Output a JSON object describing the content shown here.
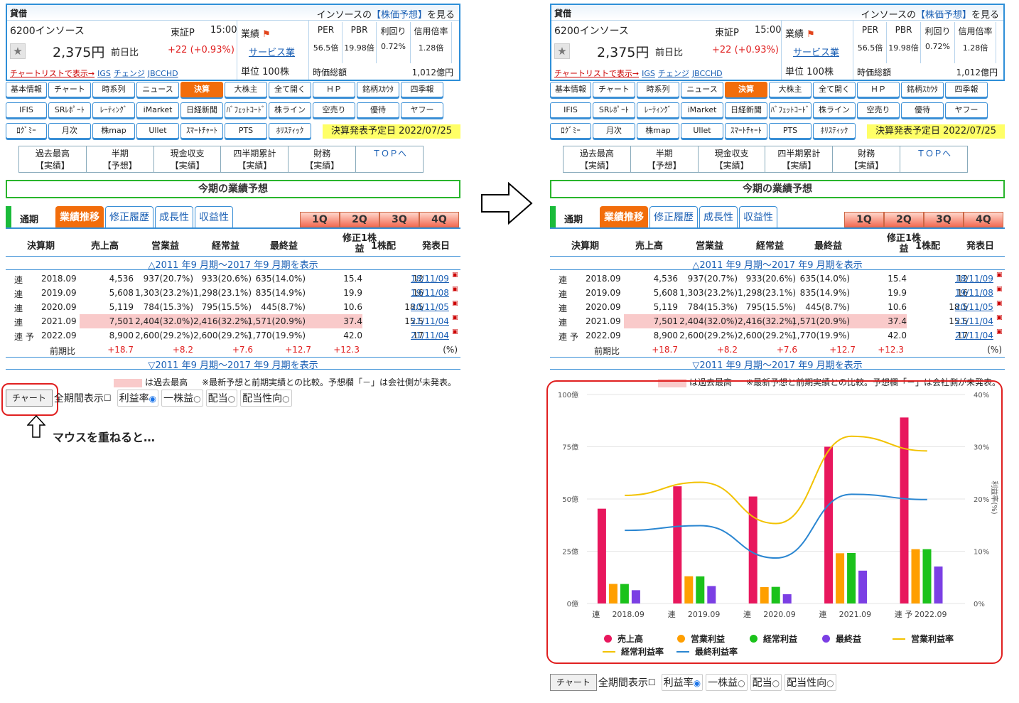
{
  "header": {
    "kashi": "貸借",
    "forecast_prefix": "インソースの",
    "forecast_link": "【株価予想】",
    "forecast_suffix": "を見る",
    "code_name": "6200インソース",
    "market": "東証P",
    "time": "15:00",
    "price": "2,375円",
    "prev_label": "前日比",
    "change": "+22  (+0.93%)",
    "chart_list_link": "チャートリストで表示→",
    "related": [
      "IGS",
      "チェンジ",
      "JBCCHD"
    ],
    "gyoseki": "業績",
    "industry": "サービス業",
    "unit": "単位 100株",
    "metrics": [
      {
        "h": "PER",
        "v": "56.5倍"
      },
      {
        "h": "PBR",
        "v": "19.98倍"
      },
      {
        "h": "利回り",
        "v": "0.72%"
      },
      {
        "h": "信用倍率",
        "v": "1.28倍"
      }
    ],
    "mcap_label": "時価総額",
    "mcap": "1,012億円"
  },
  "nav_rows": [
    [
      "基本情報",
      "チャート",
      "時系列",
      "ニュース",
      "決算",
      "大株主",
      "全て開く",
      "ＨＰ",
      "銘柄ｽｶｳﾀ",
      "四季報"
    ],
    [
      "IFIS",
      "SRﾚﾎﾟｰﾄ",
      "ﾚｰﾃｨﾝｸﾞ",
      "iMarket",
      "日経新聞",
      "ﾊﾞﾌｪｯﾄｺｰﾄﾞ",
      "株ライン",
      "空売り",
      "優待",
      "ヤフー"
    ],
    [
      "ﾛｸﾞﾐｰ",
      "月次",
      "株map",
      "Ullet",
      "ｽﾏｰﾄﾁｬｰﾄ",
      "PTS",
      "ﾎﾘｽﾃｨｯｸ"
    ]
  ],
  "kessan_date": "決算発表予定日 2022/07/25",
  "subnav": [
    {
      "a": "過去最高",
      "b": "【実績】"
    },
    {
      "a": "半期",
      "b": "【予想】"
    },
    {
      "a": "現金収支",
      "b": "【実績】"
    },
    {
      "a": "四半期累計",
      "b": "【実績】"
    },
    {
      "a": "財務",
      "b": "【実績】"
    },
    {
      "a": "ＴＯＰへ",
      "b": ""
    }
  ],
  "banner": "今期の業績予想",
  "tsuki": "通期",
  "period_tabs": [
    "業績推移",
    "修正履歴",
    "成長性",
    "収益性"
  ],
  "quarter_tabs": [
    "1Q",
    "2Q",
    "3Q",
    "4Q"
  ],
  "columns": [
    "決算期",
    "売上高",
    "営業益",
    "経常益",
    "最終益",
    "修正1株益",
    "1株配",
    "発表日"
  ],
  "show_past_top": "△2011 年9 月期～2017 年9 月期を表示",
  "show_past_bottom": "▽2011 年9 月期～2017 年9 月期を表示",
  "rows": [
    {
      "t": "連",
      "y": "2018.09",
      "s": "4,536",
      "op": "937(20.7%)",
      "ord": "933(20.6%)",
      "net": "635(14.0%)",
      "eps": "15.4",
      "div": "12",
      "d": "18/11/09"
    },
    {
      "t": "連",
      "y": "2019.09",
      "s": "5,608",
      "op": "1,303(23.2%)",
      "ord": "1,298(23.1%)",
      "net": "835(14.9%)",
      "eps": "19.9",
      "div": "16",
      "d": "19/11/08"
    },
    {
      "t": "連",
      "y": "2020.09",
      "s": "5,119",
      "op": "784(15.3%)",
      "ord": "795(15.5%)",
      "net": "445(8.7%)",
      "eps": "10.6",
      "div": "18.5",
      "d": "20/11/05"
    },
    {
      "t": "連",
      "y": "2021.09",
      "s": "7,501",
      "op": "2,404(32.0%)",
      "ord": "2,416(32.2%)",
      "net": "1,571(20.9%)",
      "eps": "37.4",
      "div": "15.5",
      "d": "21/11/04"
    },
    {
      "t": "連 予",
      "y": "2022.09",
      "s": "8,900",
      "op": "2,600(29.2%)",
      "ord": "2,600(29.2%)",
      "net": "1,770(19.9%)",
      "eps": "42.0",
      "div": "17",
      "d": "21/11/04"
    }
  ],
  "ratio_row": {
    "label": "前期比",
    "s": "+18.7",
    "op": "+8.2",
    "ord": "+7.6",
    "net": "+12.7",
    "eps": "+12.3",
    "unit": "(%)"
  },
  "note_swatch": "は過去最高",
  "note_text": "※最新予想と前期実績との比較。予想欄「－」は会社側が未発表。",
  "controls": {
    "chart_btn": "チャート",
    "all_period": "全期間表示",
    "opts": [
      "利益率",
      "一株益",
      "配当",
      "配当性向"
    ]
  },
  "hover_text": "マウスを重ねると…",
  "chart_data": {
    "type": "bar",
    "categories": [
      "2018.09",
      "2019.09",
      "2020.09",
      "2021.09",
      "2022.09"
    ],
    "category_prefix": [
      "連",
      "連",
      "連",
      "連",
      "連 予"
    ],
    "ylim": [
      0,
      100
    ],
    "ylim_right": [
      0,
      40
    ],
    "yticks": [
      "0億",
      "25億",
      "50億",
      "75億",
      "100億"
    ],
    "yticks_right": [
      "0%",
      "10%",
      "20%",
      "30%",
      "40%"
    ],
    "ylabel_right": "利益率(%)",
    "series": [
      {
        "name": "売上高",
        "color": "#e8175d",
        "values": [
          45.36,
          56.08,
          51.19,
          75.01,
          89.0
        ]
      },
      {
        "name": "営業利益",
        "color": "#ff9f00",
        "values": [
          9.37,
          13.03,
          7.84,
          24.04,
          26.0
        ]
      },
      {
        "name": "経常利益",
        "color": "#1bc21b",
        "values": [
          9.33,
          12.98,
          7.95,
          24.16,
          26.0
        ]
      },
      {
        "name": "最終益",
        "color": "#7b3fe4",
        "values": [
          6.35,
          8.35,
          4.45,
          15.71,
          17.7
        ]
      }
    ],
    "lines": [
      {
        "name": "営業利益率",
        "color": "#f2c200",
        "values": [
          20.7,
          23.2,
          15.3,
          32.0,
          29.2
        ]
      },
      {
        "name": "経常利益率",
        "color": "#f2c200",
        "values": [
          20.6,
          23.1,
          15.5,
          32.2,
          29.2
        ]
      },
      {
        "name": "最終利益率",
        "color": "#2a86d1",
        "values": [
          14.0,
          14.9,
          8.7,
          20.9,
          19.9
        ]
      }
    ]
  }
}
